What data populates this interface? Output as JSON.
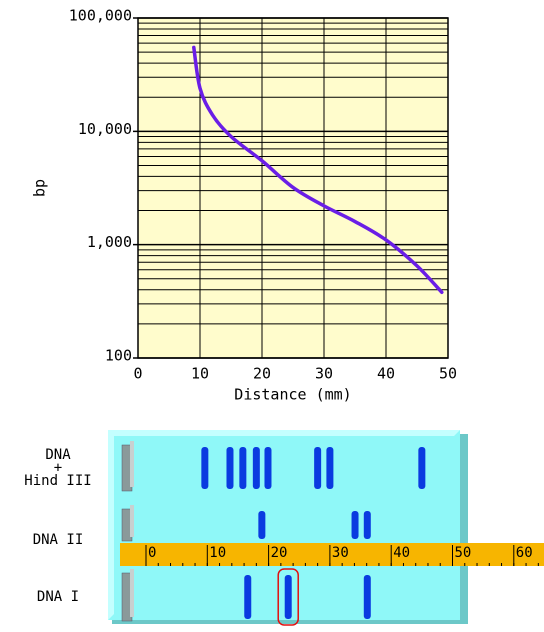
{
  "chart_data": {
    "type": "line",
    "x_label": "Distance (mm)",
    "y_label": "bp",
    "x": [
      9,
      10,
      12,
      15,
      20,
      25,
      30,
      35,
      40,
      45,
      49
    ],
    "values": [
      55000,
      24000,
      14000,
      9000,
      5500,
      3200,
      2200,
      1600,
      1100,
      650,
      380
    ],
    "color": "#6a1ee6",
    "log_y": true,
    "grid": true,
    "background": "#fffccc",
    "xlim": [
      0,
      50
    ],
    "xticks": [
      0,
      10,
      20,
      30,
      40,
      50
    ],
    "ylim": [
      100,
      100000
    ],
    "yticks": [
      {
        "value": 100,
        "label": "100"
      },
      {
        "value": 1000,
        "label": "1,000"
      },
      {
        "value": 10000,
        "label": "10,000"
      },
      {
        "value": 100000,
        "label": "100,000"
      }
    ]
  },
  "gel": {
    "lanes": [
      {
        "label": [
          "DNA",
          "+",
          "Hind III"
        ],
        "bands": [
          9.6,
          13.7,
          15.8,
          18.0,
          19.9,
          28.0,
          30.0,
          45.0
        ]
      },
      {
        "label": [
          "DNA II"
        ],
        "bands": [
          18.9,
          34.1,
          36.1
        ]
      },
      {
        "label": [
          "DNA I"
        ],
        "bands": [
          16.6,
          23.2,
          36.1
        ],
        "selected": 1
      }
    ],
    "ruler_ticks": [
      0,
      10,
      20,
      30,
      40,
      50,
      60
    ],
    "ruler_color": "#f7b500",
    "band_color": "#0a3be0",
    "gel_color": "#8ff8f8"
  }
}
